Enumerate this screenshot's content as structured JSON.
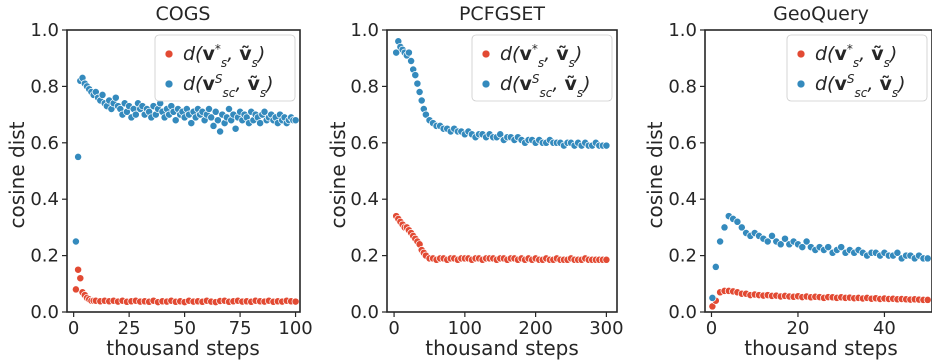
{
  "colors": {
    "red": "#e24a33",
    "blue": "#348abd",
    "spine": "#262626"
  },
  "legend": {
    "red_label": "d(v*s, ṽs)",
    "blue_label": "d(vSsc, ṽs)"
  },
  "chart_data": [
    {
      "type": "scatter",
      "title": "COGS",
      "xlabel": "thousand steps",
      "ylabel": "cosine dist",
      "xlim": [
        -3,
        102
      ],
      "ylim": [
        0,
        1
      ],
      "xticks": [
        0,
        25,
        50,
        75,
        100
      ],
      "yticks": [
        0.0,
        0.2,
        0.4,
        0.6,
        0.8,
        1.0
      ],
      "legend_position": "top-right",
      "series": [
        {
          "name": "d(v*s, ṽs)",
          "color": "#e24a33",
          "x": [
            1,
            2,
            3,
            4,
            5,
            6,
            7,
            8,
            9,
            10,
            12,
            14,
            16,
            18,
            20,
            22,
            24,
            26,
            28,
            30,
            32,
            34,
            36,
            38,
            40,
            42,
            44,
            46,
            48,
            50,
            52,
            54,
            56,
            58,
            60,
            62,
            64,
            66,
            68,
            70,
            72,
            74,
            76,
            78,
            80,
            82,
            84,
            86,
            88,
            90,
            92,
            94,
            96,
            98,
            100
          ],
          "y": [
            0.08,
            0.15,
            0.12,
            0.07,
            0.06,
            0.05,
            0.045,
            0.04,
            0.04,
            0.04,
            0.038,
            0.04,
            0.038,
            0.04,
            0.037,
            0.04,
            0.036,
            0.038,
            0.04,
            0.037,
            0.038,
            0.036,
            0.04,
            0.035,
            0.038,
            0.037,
            0.04,
            0.036,
            0.038,
            0.035,
            0.04,
            0.037,
            0.038,
            0.036,
            0.04,
            0.037,
            0.035,
            0.039,
            0.04,
            0.036,
            0.038,
            0.04,
            0.037,
            0.038,
            0.036,
            0.04,
            0.038,
            0.037,
            0.04,
            0.036,
            0.038,
            0.037,
            0.04,
            0.038,
            0.037
          ]
        },
        {
          "name": "d(vSsc, ṽs)",
          "color": "#348abd",
          "x": [
            1,
            2,
            3,
            4,
            5,
            6,
            7,
            8,
            9,
            10,
            11,
            12,
            13,
            14,
            15,
            16,
            17,
            18,
            19,
            20,
            21,
            22,
            23,
            24,
            25,
            26,
            27,
            28,
            29,
            30,
            31,
            32,
            33,
            34,
            35,
            36,
            37,
            38,
            39,
            40,
            41,
            42,
            43,
            44,
            45,
            46,
            47,
            48,
            49,
            50,
            51,
            52,
            53,
            54,
            55,
            56,
            57,
            58,
            59,
            60,
            61,
            62,
            63,
            64,
            65,
            66,
            67,
            68,
            69,
            70,
            71,
            72,
            73,
            74,
            75,
            76,
            77,
            78,
            79,
            80,
            81,
            82,
            83,
            84,
            85,
            86,
            87,
            88,
            89,
            90,
            91,
            92,
            93,
            94,
            95,
            96,
            97,
            98,
            99,
            100
          ],
          "y": [
            0.25,
            0.55,
            0.82,
            0.83,
            0.81,
            0.8,
            0.79,
            0.78,
            0.77,
            0.78,
            0.76,
            0.75,
            0.77,
            0.74,
            0.73,
            0.75,
            0.72,
            0.74,
            0.76,
            0.73,
            0.72,
            0.7,
            0.74,
            0.71,
            0.73,
            0.69,
            0.72,
            0.7,
            0.74,
            0.72,
            0.73,
            0.7,
            0.72,
            0.71,
            0.69,
            0.73,
            0.7,
            0.72,
            0.74,
            0.71,
            0.69,
            0.72,
            0.7,
            0.73,
            0.71,
            0.68,
            0.72,
            0.7,
            0.71,
            0.69,
            0.72,
            0.7,
            0.67,
            0.71,
            0.69,
            0.72,
            0.7,
            0.71,
            0.68,
            0.7,
            0.72,
            0.69,
            0.66,
            0.71,
            0.68,
            0.64,
            0.7,
            0.67,
            0.69,
            0.72,
            0.68,
            0.7,
            0.65,
            0.69,
            0.71,
            0.68,
            0.7,
            0.69,
            0.67,
            0.71,
            0.68,
            0.7,
            0.69,
            0.67,
            0.7,
            0.71,
            0.68,
            0.69,
            0.7,
            0.68,
            0.69,
            0.67,
            0.7,
            0.68,
            0.69,
            0.67,
            0.68,
            0.69,
            0.68,
            0.68
          ]
        }
      ]
    },
    {
      "type": "scatter",
      "title": "PCFGSET",
      "xlabel": "thousand steps",
      "ylabel": "cosine dist",
      "xlim": [
        -10,
        315
      ],
      "ylim": [
        0,
        1
      ],
      "xticks": [
        0,
        100,
        200,
        300
      ],
      "yticks": [
        0.0,
        0.2,
        0.4,
        0.6,
        0.8,
        1.0
      ],
      "legend_position": "top-right",
      "series": [
        {
          "name": "d(v*s, ṽs)",
          "color": "#e24a33",
          "x": [
            3,
            6,
            9,
            12,
            15,
            18,
            21,
            24,
            27,
            30,
            33,
            36,
            39,
            42,
            45,
            50,
            55,
            60,
            65,
            70,
            75,
            80,
            85,
            90,
            95,
            100,
            105,
            110,
            115,
            120,
            125,
            130,
            135,
            140,
            145,
            150,
            155,
            160,
            165,
            170,
            175,
            180,
            185,
            190,
            195,
            200,
            205,
            210,
            215,
            220,
            225,
            230,
            235,
            240,
            245,
            250,
            255,
            260,
            265,
            270,
            275,
            280,
            285,
            290,
            295,
            300
          ],
          "y": [
            0.34,
            0.33,
            0.32,
            0.31,
            0.3,
            0.3,
            0.29,
            0.28,
            0.27,
            0.26,
            0.25,
            0.24,
            0.22,
            0.21,
            0.2,
            0.19,
            0.19,
            0.185,
            0.19,
            0.19,
            0.185,
            0.19,
            0.19,
            0.185,
            0.19,
            0.19,
            0.19,
            0.185,
            0.19,
            0.19,
            0.185,
            0.19,
            0.19,
            0.19,
            0.185,
            0.19,
            0.19,
            0.185,
            0.19,
            0.19,
            0.185,
            0.19,
            0.185,
            0.19,
            0.185,
            0.19,
            0.185,
            0.185,
            0.19,
            0.185,
            0.185,
            0.19,
            0.185,
            0.185,
            0.185,
            0.19,
            0.185,
            0.185,
            0.185,
            0.19,
            0.185,
            0.185,
            0.185,
            0.185,
            0.185,
            0.185
          ]
        },
        {
          "name": "d(vSsc, ṽs)",
          "color": "#348abd",
          "x": [
            3,
            6,
            9,
            12,
            15,
            18,
            21,
            24,
            27,
            30,
            33,
            36,
            39,
            42,
            45,
            50,
            55,
            60,
            65,
            70,
            75,
            80,
            85,
            90,
            95,
            100,
            105,
            110,
            115,
            120,
            125,
            130,
            135,
            140,
            145,
            150,
            155,
            160,
            165,
            170,
            175,
            180,
            185,
            190,
            195,
            200,
            205,
            210,
            215,
            220,
            225,
            230,
            235,
            240,
            245,
            250,
            255,
            260,
            265,
            270,
            275,
            280,
            285,
            290,
            295,
            300
          ],
          "y": [
            0.92,
            0.96,
            0.94,
            0.93,
            0.92,
            0.91,
            0.92,
            0.89,
            0.86,
            0.84,
            0.81,
            0.78,
            0.75,
            0.72,
            0.7,
            0.68,
            0.67,
            0.66,
            0.66,
            0.65,
            0.65,
            0.64,
            0.65,
            0.64,
            0.64,
            0.63,
            0.64,
            0.63,
            0.62,
            0.63,
            0.63,
            0.62,
            0.63,
            0.62,
            0.62,
            0.63,
            0.61,
            0.62,
            0.62,
            0.61,
            0.62,
            0.61,
            0.6,
            0.61,
            0.61,
            0.6,
            0.61,
            0.6,
            0.6,
            0.61,
            0.6,
            0.6,
            0.6,
            0.59,
            0.6,
            0.6,
            0.59,
            0.6,
            0.59,
            0.6,
            0.59,
            0.59,
            0.6,
            0.59,
            0.59,
            0.59
          ]
        }
      ]
    },
    {
      "type": "scatter",
      "title": "GeoQuery",
      "xlabel": "thousand steps",
      "ylabel": "cosine dist",
      "xlim": [
        -1.5,
        51
      ],
      "ylim": [
        0,
        1
      ],
      "xticks": [
        0,
        20,
        40
      ],
      "yticks": [
        0.0,
        0.2,
        0.4,
        0.6,
        0.8,
        1.0
      ],
      "legend_position": "top-right",
      "series": [
        {
          "name": "d(v*s, ṽs)",
          "color": "#e24a33",
          "x": [
            0.2,
            1,
            2,
            3,
            4,
            5,
            6,
            7,
            8,
            9,
            10,
            11,
            12,
            13,
            14,
            15,
            16,
            17,
            18,
            19,
            20,
            21,
            22,
            23,
            24,
            25,
            26,
            27,
            28,
            29,
            30,
            31,
            32,
            33,
            34,
            35,
            36,
            37,
            38,
            39,
            40,
            41,
            42,
            43,
            44,
            45,
            46,
            47,
            48,
            49,
            50
          ],
          "y": [
            0.02,
            0.04,
            0.07,
            0.075,
            0.075,
            0.073,
            0.07,
            0.065,
            0.065,
            0.06,
            0.062,
            0.06,
            0.058,
            0.06,
            0.057,
            0.058,
            0.055,
            0.057,
            0.055,
            0.054,
            0.056,
            0.053,
            0.055,
            0.052,
            0.054,
            0.053,
            0.05,
            0.053,
            0.052,
            0.05,
            0.052,
            0.05,
            0.051,
            0.049,
            0.05,
            0.048,
            0.05,
            0.047,
            0.049,
            0.046,
            0.048,
            0.046,
            0.047,
            0.045,
            0.046,
            0.045,
            0.044,
            0.045,
            0.044,
            0.043,
            0.043
          ]
        },
        {
          "name": "d(vSsc, ṽs)",
          "color": "#348abd",
          "x": [
            0.2,
            1,
            2,
            3,
            4,
            5,
            6,
            7,
            8,
            9,
            10,
            11,
            12,
            13,
            14,
            15,
            16,
            17,
            18,
            19,
            20,
            21,
            22,
            23,
            24,
            25,
            26,
            27,
            28,
            29,
            30,
            31,
            32,
            33,
            34,
            35,
            36,
            37,
            38,
            39,
            40,
            41,
            42,
            43,
            44,
            45,
            46,
            47,
            48,
            49,
            50
          ],
          "y": [
            0.05,
            0.16,
            0.25,
            0.3,
            0.34,
            0.33,
            0.32,
            0.3,
            0.28,
            0.27,
            0.28,
            0.27,
            0.26,
            0.25,
            0.27,
            0.25,
            0.24,
            0.26,
            0.24,
            0.25,
            0.24,
            0.23,
            0.25,
            0.23,
            0.22,
            0.23,
            0.22,
            0.23,
            0.21,
            0.22,
            0.23,
            0.21,
            0.22,
            0.21,
            0.22,
            0.21,
            0.2,
            0.21,
            0.21,
            0.2,
            0.21,
            0.2,
            0.2,
            0.21,
            0.19,
            0.2,
            0.2,
            0.19,
            0.2,
            0.19,
            0.19
          ]
        }
      ]
    }
  ]
}
